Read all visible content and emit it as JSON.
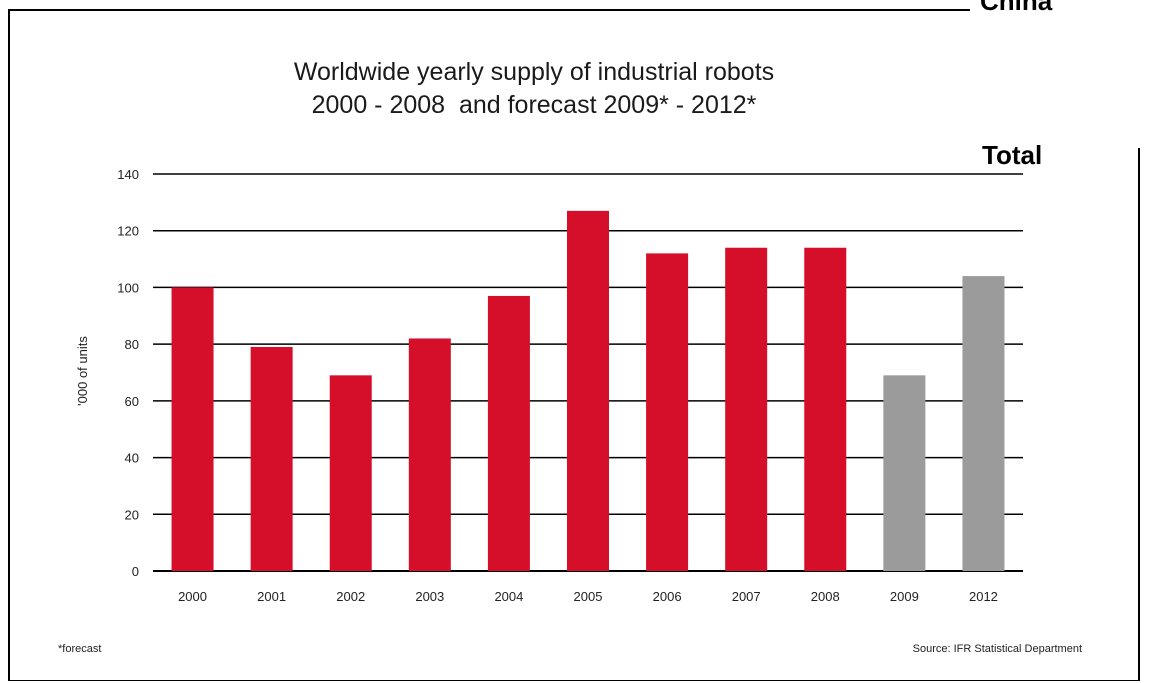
{
  "corner_labels": {
    "top_right": "China",
    "right": "Total"
  },
  "colors": {
    "actual": "#d50f2a",
    "forecast": "#9b9b9b",
    "gridline": "#000000"
  },
  "chart_data": {
    "type": "bar",
    "title": "Worldwide yearly supply of industrial robots",
    "subtitle": "2000 - 2008  and forecast 2009* - 2012*",
    "ylabel": "'000 of units",
    "xlabel": "",
    "ylim": [
      0,
      140
    ],
    "yticks": [
      0,
      20,
      40,
      60,
      80,
      100,
      120,
      140
    ],
    "grid": true,
    "categories": [
      "2000",
      "2001",
      "2002",
      "2003",
      "2004",
      "2005",
      "2006",
      "2007",
      "2008",
      "2009",
      "2012"
    ],
    "values": [
      100,
      79,
      69,
      82,
      97,
      127,
      112,
      114,
      114,
      69,
      104
    ],
    "forecast_flags": [
      false,
      false,
      false,
      false,
      false,
      false,
      false,
      false,
      false,
      true,
      true
    ],
    "footnote": "*forecast",
    "source": "Source: IFR Statistical Department"
  }
}
